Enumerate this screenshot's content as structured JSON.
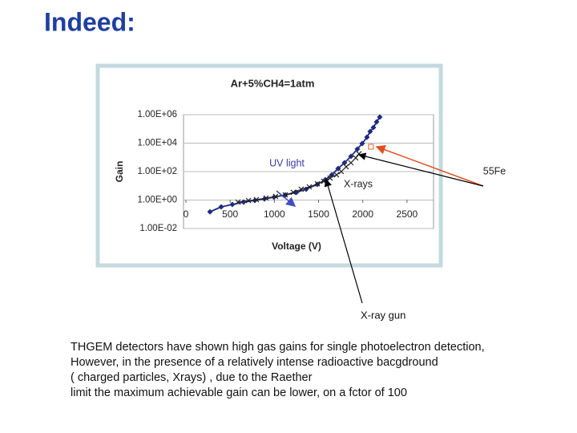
{
  "heading": "Indeed:",
  "chart_data": {
    "type": "line",
    "title": "Ar+5%CH4=1atm",
    "x_label": "Voltage (V)",
    "y_label": "Gain",
    "ylog": true,
    "grid": true,
    "xlim": [
      0,
      2800
    ],
    "xticks": [
      0,
      500,
      1000,
      1500,
      2000,
      2500
    ],
    "ylim": [
      0.01,
      1000000
    ],
    "yticks": [
      {
        "value": 0.01,
        "label": "1.00E-02"
      },
      {
        "value": 1,
        "label": "1.00E+00"
      },
      {
        "value": 100,
        "label": "1.00E+02"
      },
      {
        "value": 10000,
        "label": "1.00E+04"
      },
      {
        "value": 1000000,
        "label": "1.00E+06"
      }
    ],
    "series": [
      {
        "name": "UV light",
        "color": "#1f2a80",
        "marker": "diamond",
        "x": [
          272,
          399,
          525,
          652,
          779,
          888,
          996,
          1123,
          1250,
          1359,
          1486,
          1576,
          1649,
          1721,
          1793,
          1866,
          1938,
          1993,
          2047,
          2083,
          2120,
          2156,
          2192
        ],
        "values": [
          0.15,
          0.33,
          0.49,
          0.72,
          0.94,
          1.2,
          1.6,
          2.3,
          3.5,
          5.8,
          12.6,
          27,
          59,
          166,
          417,
          1175,
          3800,
          9300,
          26000,
          66000,
          126000,
          309000,
          676000
        ]
      },
      {
        "name": "X-rays",
        "color": "#222222",
        "marker": "x",
        "x": [
          589,
          707,
          797,
          906,
          1014,
          1123,
          1214,
          1304,
          1395,
          1486,
          1558,
          1630,
          1703,
          1757,
          1812,
          1866,
          1920,
          1957
        ],
        "values": [
          0.72,
          0.93,
          1.07,
          1.4,
          1.8,
          2.3,
          3.5,
          5.8,
          8.5,
          14,
          21,
          35,
          59,
          100,
          220,
          417,
          910,
          1780
        ]
      },
      {
        "name": "55Fe",
        "color": "#e06030",
        "marker": "square",
        "x": [
          2092
        ],
        "values": [
          5600
        ]
      }
    ]
  },
  "xray_gun": "X-ray gun",
  "body": [
    "THGEM detectors have shown high gas gains for single photoelectron detection,",
    "However, in the presence of a relatively intense  radioactive bacgdround",
    "( charged particles, Xrays) , due to the Raether",
    " limit the maximum achievable gain can be lower,  on a fctor of 100"
  ]
}
